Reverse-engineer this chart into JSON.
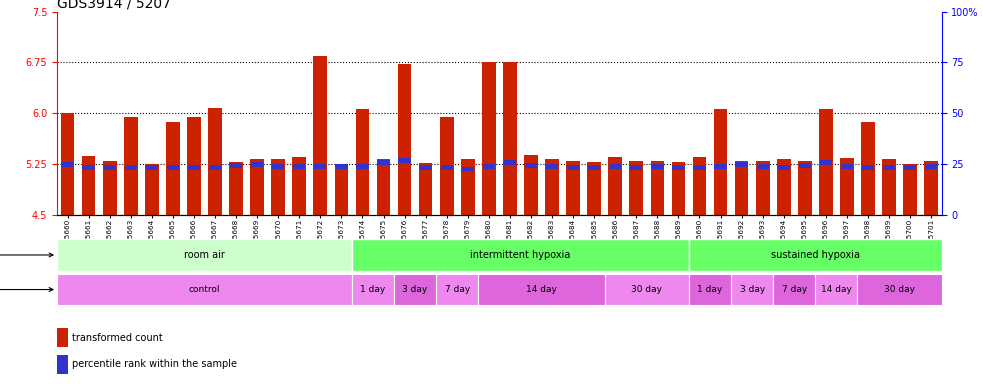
{
  "title": "GDS3914 / 5207",
  "samples": [
    "GSM215660",
    "GSM215661",
    "GSM215662",
    "GSM215663",
    "GSM215664",
    "GSM215665",
    "GSM215666",
    "GSM215667",
    "GSM215668",
    "GSM215669",
    "GSM215670",
    "GSM215671",
    "GSM215672",
    "GSM215673",
    "GSM215674",
    "GSM215675",
    "GSM215676",
    "GSM215677",
    "GSM215678",
    "GSM215679",
    "GSM215680",
    "GSM215681",
    "GSM215682",
    "GSM215683",
    "GSM215684",
    "GSM215685",
    "GSM215686",
    "GSM215687",
    "GSM215688",
    "GSM215689",
    "GSM215690",
    "GSM215691",
    "GSM215692",
    "GSM215693",
    "GSM215694",
    "GSM215695",
    "GSM215696",
    "GSM215697",
    "GSM215698",
    "GSM215699",
    "GSM215700",
    "GSM215701"
  ],
  "red_values": [
    6.0,
    5.37,
    5.3,
    5.95,
    5.25,
    5.87,
    5.95,
    6.08,
    5.28,
    5.32,
    5.33,
    5.36,
    6.85,
    5.25,
    6.07,
    5.33,
    6.73,
    5.27,
    5.95,
    5.32,
    6.75,
    6.75,
    5.38,
    5.32,
    5.3,
    5.28,
    5.35,
    5.3,
    5.3,
    5.28,
    5.35,
    6.07,
    5.3,
    5.3,
    5.32,
    5.3,
    6.07,
    5.34,
    5.87,
    5.32,
    5.25,
    5.3
  ],
  "blue_values": [
    5.25,
    5.2,
    5.2,
    5.2,
    5.2,
    5.2,
    5.2,
    5.2,
    5.23,
    5.25,
    5.22,
    5.22,
    5.22,
    5.22,
    5.22,
    5.27,
    5.3,
    5.2,
    5.2,
    5.18,
    5.22,
    5.27,
    5.23,
    5.22,
    5.2,
    5.2,
    5.22,
    5.2,
    5.22,
    5.2,
    5.2,
    5.22,
    5.25,
    5.22,
    5.2,
    5.23,
    5.27,
    5.22,
    5.2,
    5.2,
    5.2,
    5.22
  ],
  "y_min": 4.5,
  "y_max": 7.5,
  "y_ticks_red": [
    4.5,
    5.25,
    6.0,
    6.75,
    7.5
  ],
  "y_ticks_blue": [
    0,
    25,
    50,
    75,
    100
  ],
  "hlines": [
    5.25,
    6.0,
    6.75
  ],
  "stress_groups": [
    {
      "label": "room air",
      "start": 0,
      "end": 13,
      "color": "#ccffcc"
    },
    {
      "label": "intermittent hypoxia",
      "start": 14,
      "end": 29,
      "color": "#66ff66"
    },
    {
      "label": "sustained hypoxia",
      "start": 30,
      "end": 41,
      "color": "#66ff66"
    }
  ],
  "time_groups": [
    {
      "label": "control",
      "start": 0,
      "end": 13,
      "color": "#ee88ee"
    },
    {
      "label": "1 day",
      "start": 14,
      "end": 15,
      "color": "#ee88ee"
    },
    {
      "label": "3 day",
      "start": 16,
      "end": 17,
      "color": "#dd66dd"
    },
    {
      "label": "7 day",
      "start": 18,
      "end": 19,
      "color": "#ee88ee"
    },
    {
      "label": "14 day",
      "start": 20,
      "end": 25,
      "color": "#dd66dd"
    },
    {
      "label": "30 day",
      "start": 26,
      "end": 29,
      "color": "#ee88ee"
    },
    {
      "label": "1 day",
      "start": 30,
      "end": 31,
      "color": "#dd66dd"
    },
    {
      "label": "3 day",
      "start": 32,
      "end": 33,
      "color": "#ee88ee"
    },
    {
      "label": "7 day",
      "start": 34,
      "end": 35,
      "color": "#dd66dd"
    },
    {
      "label": "14 day",
      "start": 36,
      "end": 37,
      "color": "#ee88ee"
    },
    {
      "label": "30 day",
      "start": 38,
      "end": 41,
      "color": "#dd66dd"
    }
  ],
  "bar_color_red": "#cc2200",
  "bar_color_blue": "#3333cc",
  "background_color": "#ffffff",
  "title_fontsize": 10,
  "tick_fontsize": 7,
  "label_fontsize": 8
}
